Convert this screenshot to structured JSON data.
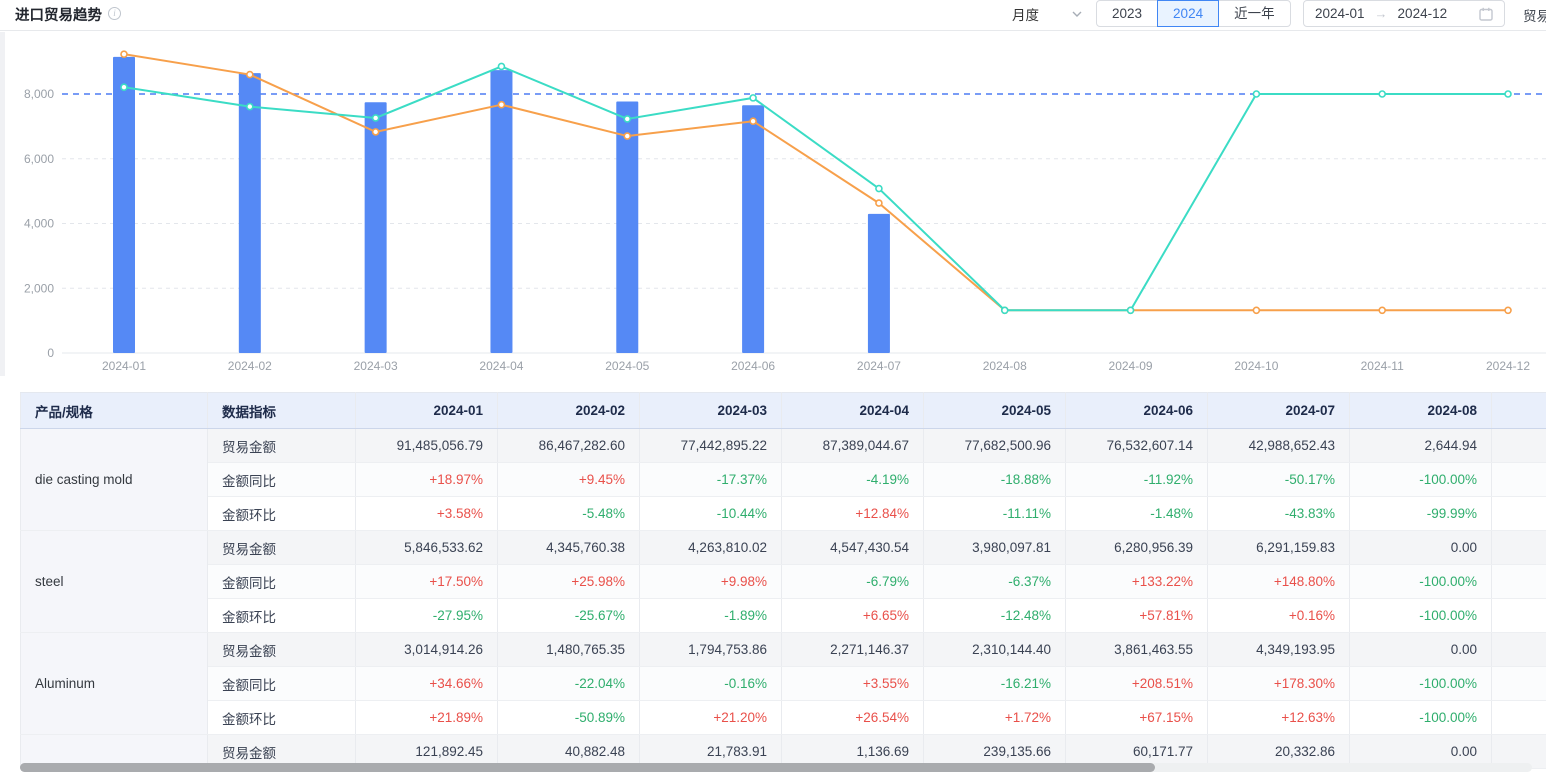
{
  "header": {
    "title": "进口贸易趋势",
    "period_select": {
      "value": "月度"
    },
    "year_buttons": [
      {
        "label": "2023",
        "active": false
      },
      {
        "label": "2024",
        "active": true
      },
      {
        "label": "近一年",
        "active": false
      }
    ],
    "date_range": {
      "start": "2024-01",
      "end": "2024-12"
    },
    "right_clipped_label": "贸易"
  },
  "colors": {
    "bar": "#5589f5",
    "line_orange": "#f7a04b",
    "line_teal": "#3bdcc5",
    "markline": "#4d7bf3",
    "positive": "#e9504a",
    "negative": "#2fae6d",
    "axis_label": "#9aa0a8",
    "grid": "#e3e6eb"
  },
  "chart_data": {
    "type": "bar+line",
    "categories": [
      "2024-01",
      "2024-02",
      "2024-03",
      "2024-04",
      "2024-05",
      "2024-06",
      "2024-07",
      "2024-08",
      "2024-09",
      "2024-10",
      "2024-11",
      "2024-12"
    ],
    "series": [
      {
        "name": "trade-amount-bar",
        "type": "bar",
        "color": "#5589f5",
        "values": [
          9148.5,
          8646.7,
          7744.3,
          8738.9,
          7768.3,
          7653.3,
          4298.9,
          0.3,
          0,
          0,
          0,
          0
        ]
      },
      {
        "name": "line-orange",
        "type": "line",
        "color": "#f7a04b",
        "values": [
          9230,
          8600,
          6830,
          7670,
          6700,
          7160,
          4630,
          1320,
          1320,
          1320,
          1320,
          1320
        ]
      },
      {
        "name": "line-teal",
        "type": "line",
        "color": "#3bdcc5",
        "values": [
          8210,
          7610,
          7260,
          8850,
          7230,
          7880,
          5080,
          1320,
          1320,
          8000,
          8000,
          8000
        ]
      }
    ],
    "ylim": [
      0,
      9400
    ],
    "yticks": [
      0,
      2000,
      4000,
      6000
    ],
    "ytick_labels": [
      "0",
      "2,000",
      "4,000",
      "6,000"
    ],
    "markline": {
      "value": 8000,
      "label": "8,000"
    },
    "grid": true,
    "legend": "none"
  },
  "table": {
    "product_header": "产品/规格",
    "metric_header": "数据指标",
    "months": [
      "2024-01",
      "2024-02",
      "2024-03",
      "2024-04",
      "2024-05",
      "2024-06",
      "2024-07",
      "2024-08"
    ],
    "groups": [
      {
        "product": "die casting mold",
        "rows": [
          {
            "metric": "贸易金额",
            "values": [
              "91,485,056.79",
              "86,467,282.60",
              "77,442,895.22",
              "87,389,044.67",
              "77,682,500.96",
              "76,532,607.14",
              "42,988,652.43",
              "2,644.94"
            ]
          },
          {
            "metric": "金额同比",
            "values": [
              "+18.97%",
              "+9.45%",
              "-17.37%",
              "-4.19%",
              "-18.88%",
              "-11.92%",
              "-50.17%",
              "-100.00%"
            ]
          },
          {
            "metric": "金额环比",
            "values": [
              "+3.58%",
              "-5.48%",
              "-10.44%",
              "+12.84%",
              "-11.11%",
              "-1.48%",
              "-43.83%",
              "-99.99%"
            ]
          }
        ]
      },
      {
        "product": "steel",
        "rows": [
          {
            "metric": "贸易金额",
            "values": [
              "5,846,533.62",
              "4,345,760.38",
              "4,263,810.02",
              "4,547,430.54",
              "3,980,097.81",
              "6,280,956.39",
              "6,291,159.83",
              "0.00"
            ]
          },
          {
            "metric": "金额同比",
            "values": [
              "+17.50%",
              "+25.98%",
              "+9.98%",
              "-6.79%",
              "-6.37%",
              "+133.22%",
              "+148.80%",
              "-100.00%"
            ]
          },
          {
            "metric": "金额环比",
            "values": [
              "-27.95%",
              "-25.67%",
              "-1.89%",
              "+6.65%",
              "-12.48%",
              "+57.81%",
              "+0.16%",
              "-100.00%"
            ]
          }
        ]
      },
      {
        "product": "Aluminum",
        "rows": [
          {
            "metric": "贸易金额",
            "values": [
              "3,014,914.26",
              "1,480,765.35",
              "1,794,753.86",
              "2,271,146.37",
              "2,310,144.40",
              "3,861,463.55",
              "4,349,193.95",
              "0.00"
            ]
          },
          {
            "metric": "金额同比",
            "values": [
              "+34.66%",
              "-22.04%",
              "-0.16%",
              "+3.55%",
              "-16.21%",
              "+208.51%",
              "+178.30%",
              "-100.00%"
            ]
          },
          {
            "metric": "金额环比",
            "values": [
              "+21.89%",
              "-50.89%",
              "+21.20%",
              "+26.54%",
              "+1.72%",
              "+67.15%",
              "+12.63%",
              "-100.00%"
            ]
          }
        ]
      },
      {
        "product": "",
        "rows": [
          {
            "metric": "贸易金额",
            "values": [
              "121,892.45",
              "40,882.48",
              "21,783.91",
              "1,136.69",
              "239,135.66",
              "60,171.77",
              "20,332.86",
              "0.00"
            ]
          }
        ]
      }
    ]
  }
}
